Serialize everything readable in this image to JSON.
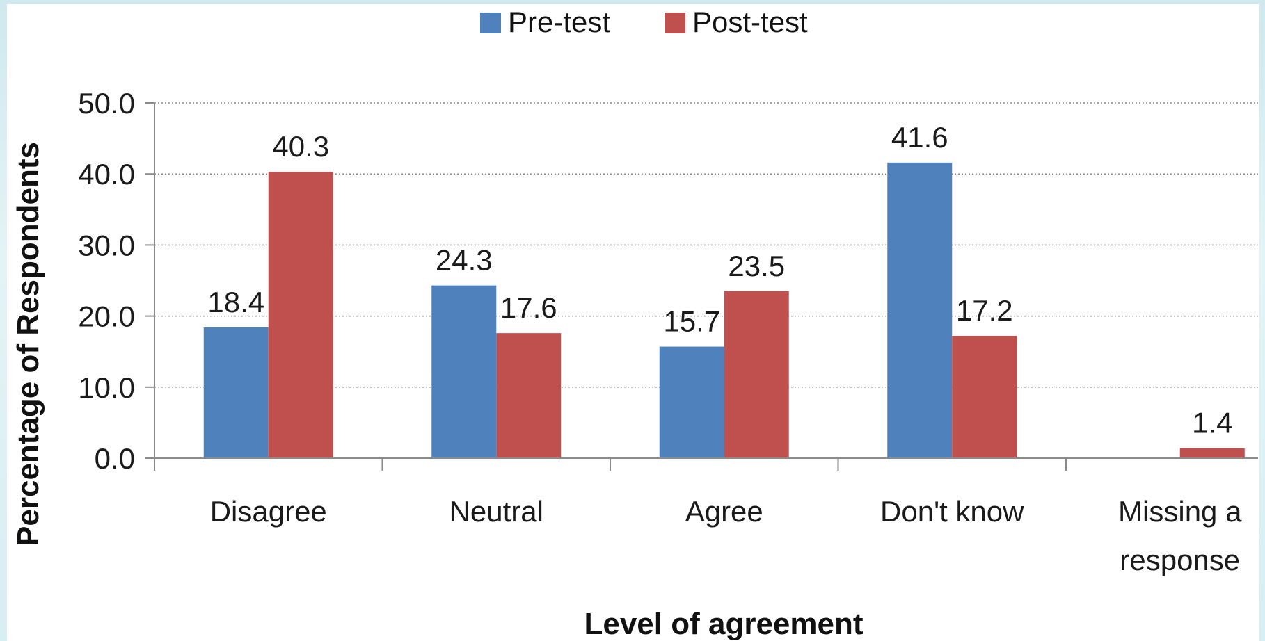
{
  "chart_data": {
    "type": "bar",
    "categories": [
      "Disagree",
      "Neutral",
      "Agree",
      "Don't know",
      "Missing a response"
    ],
    "category_lines": [
      [
        "Disagree"
      ],
      [
        "Neutral"
      ],
      [
        "Agree"
      ],
      [
        "Don't know"
      ],
      [
        "Missing a",
        "response"
      ]
    ],
    "series": [
      {
        "name": "Pre-test",
        "color": "#4f81bd",
        "values": [
          18.4,
          24.3,
          15.7,
          41.6,
          null
        ],
        "labels": [
          "18.4",
          "24.3",
          "15.7",
          "41.6",
          ""
        ]
      },
      {
        "name": "Post-test",
        "color": "#c0504d",
        "values": [
          40.3,
          17.6,
          23.5,
          17.2,
          1.4
        ],
        "labels": [
          "40.3",
          "17.6",
          "23.5",
          "17.2",
          "1.4"
        ]
      }
    ],
    "title": "",
    "xlabel": "Level of agreement",
    "ylabel": "Percentage of Respondents",
    "ylim": [
      0,
      50
    ],
    "yticks": [
      0,
      10,
      20,
      30,
      40,
      50
    ],
    "ytick_labels": [
      "0.0",
      "10.0",
      "20.0",
      "30.0",
      "40.0",
      "50.0"
    ],
    "grid": true,
    "grid_style": "dotted",
    "legend": "top-center"
  }
}
